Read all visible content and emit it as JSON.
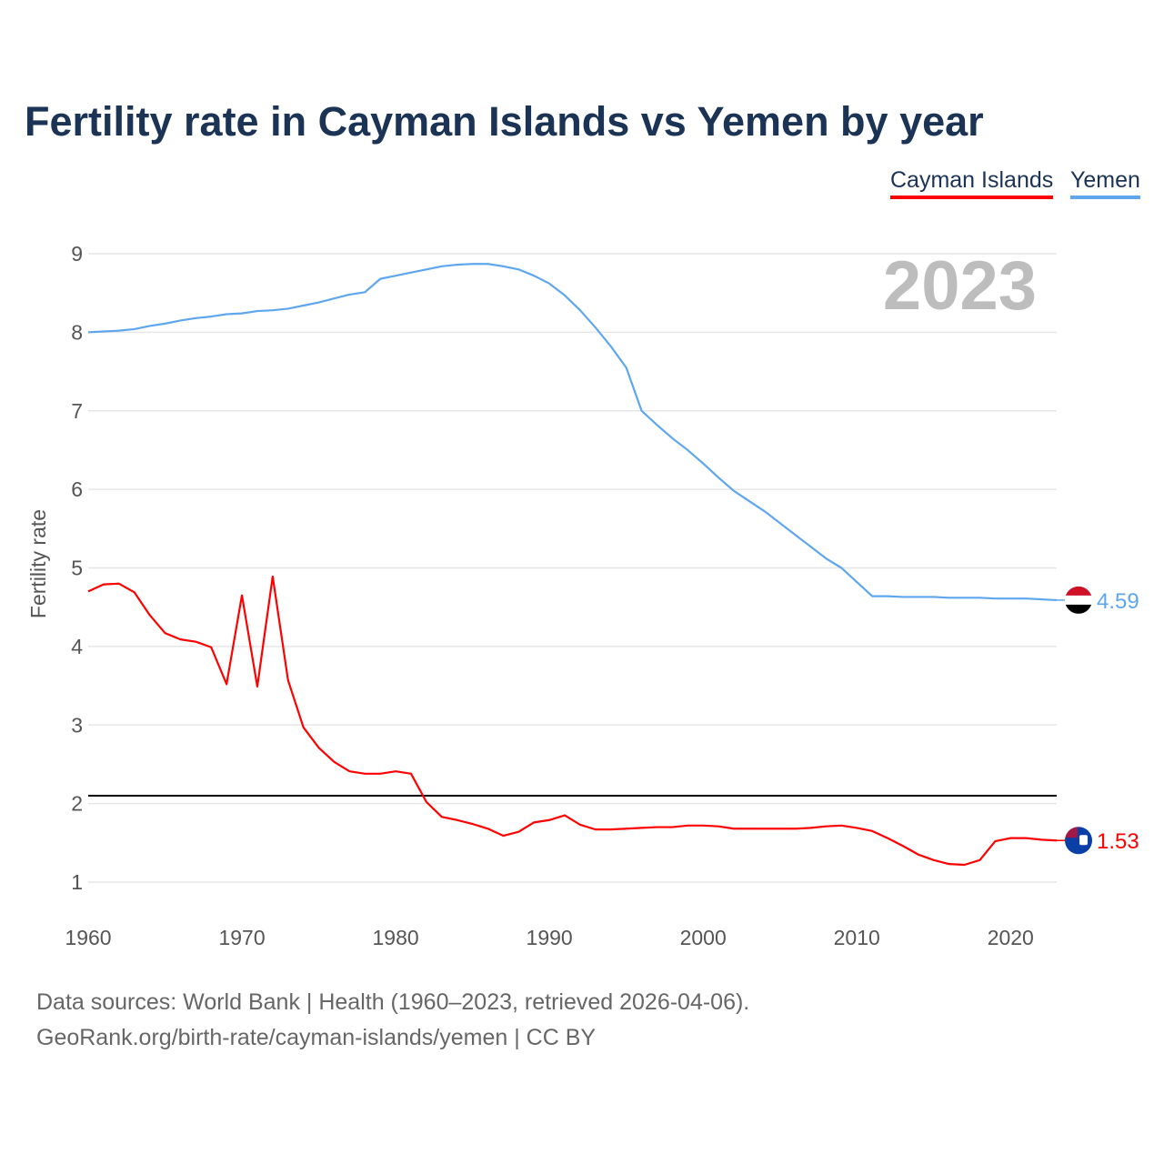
{
  "chart_data": {
    "type": "line",
    "title": "Fertility rate in Cayman Islands vs Yemen by year",
    "xlabel": "",
    "ylabel": "Fertility rate",
    "xlim": [
      1960,
      2023
    ],
    "ylim": [
      1,
      9
    ],
    "x_ticks": [
      "1960",
      "1970",
      "1980",
      "1990",
      "2000",
      "2010",
      "2020"
    ],
    "y_ticks": [
      "1",
      "2",
      "3",
      "4",
      "5",
      "6",
      "7",
      "8",
      "9"
    ],
    "grid": true,
    "legend_position": "top-right",
    "year_label": "2023",
    "reference_line": 2.1,
    "x": [
      1960,
      1961,
      1962,
      1963,
      1964,
      1965,
      1966,
      1967,
      1968,
      1969,
      1970,
      1971,
      1972,
      1973,
      1974,
      1975,
      1976,
      1977,
      1978,
      1979,
      1980,
      1981,
      1982,
      1983,
      1984,
      1985,
      1986,
      1987,
      1988,
      1989,
      1990,
      1991,
      1992,
      1993,
      1994,
      1995,
      1996,
      1997,
      1998,
      1999,
      2000,
      2001,
      2002,
      2003,
      2004,
      2005,
      2006,
      2007,
      2008,
      2009,
      2010,
      2011,
      2012,
      2013,
      2014,
      2015,
      2016,
      2017,
      2018,
      2019,
      2020,
      2021,
      2022,
      2023
    ],
    "series": [
      {
        "name": "Cayman Islands",
        "color": "#ff0000",
        "end_label": "1.53",
        "values": [
          4.7,
          4.79,
          4.8,
          4.69,
          4.4,
          4.17,
          4.09,
          4.06,
          3.99,
          3.52,
          4.65,
          3.49,
          4.89,
          3.57,
          2.97,
          2.71,
          2.53,
          2.41,
          2.38,
          2.38,
          2.41,
          2.38,
          2.02,
          1.83,
          1.79,
          1.74,
          1.68,
          1.59,
          1.64,
          1.76,
          1.79,
          1.85,
          1.73,
          1.67,
          1.67,
          1.68,
          1.69,
          1.7,
          1.7,
          1.72,
          1.72,
          1.71,
          1.68,
          1.68,
          1.68,
          1.68,
          1.68,
          1.69,
          1.71,
          1.72,
          1.69,
          1.65,
          1.56,
          1.46,
          1.35,
          1.28,
          1.23,
          1.22,
          1.28,
          1.52,
          1.56,
          1.56,
          1.54,
          1.53
        ]
      },
      {
        "name": "Yemen",
        "color": "#5ea6ee",
        "end_label": "4.59",
        "values": [
          8.0,
          8.01,
          8.02,
          8.04,
          8.08,
          8.11,
          8.15,
          8.18,
          8.2,
          8.23,
          8.24,
          8.27,
          8.28,
          8.3,
          8.34,
          8.38,
          8.43,
          8.48,
          8.51,
          8.68,
          8.72,
          8.76,
          8.8,
          8.84,
          8.86,
          8.87,
          8.87,
          8.84,
          8.8,
          8.72,
          8.62,
          8.47,
          8.28,
          8.06,
          7.82,
          7.55,
          7.0,
          6.82,
          6.65,
          6.5,
          6.33,
          6.15,
          5.98,
          5.85,
          5.72,
          5.57,
          5.42,
          5.27,
          5.12,
          5.0,
          4.82,
          4.64,
          4.64,
          4.63,
          4.63,
          4.63,
          4.62,
          4.62,
          4.62,
          4.61,
          4.61,
          4.61,
          4.6,
          4.59
        ]
      }
    ]
  },
  "footer": {
    "line1": "Data sources: World Bank | Health (1960–2023, retrieved 2026-04-06).",
    "line2": "GeoRank.org/birth-rate/cayman-islands/yemen | CC BY"
  }
}
